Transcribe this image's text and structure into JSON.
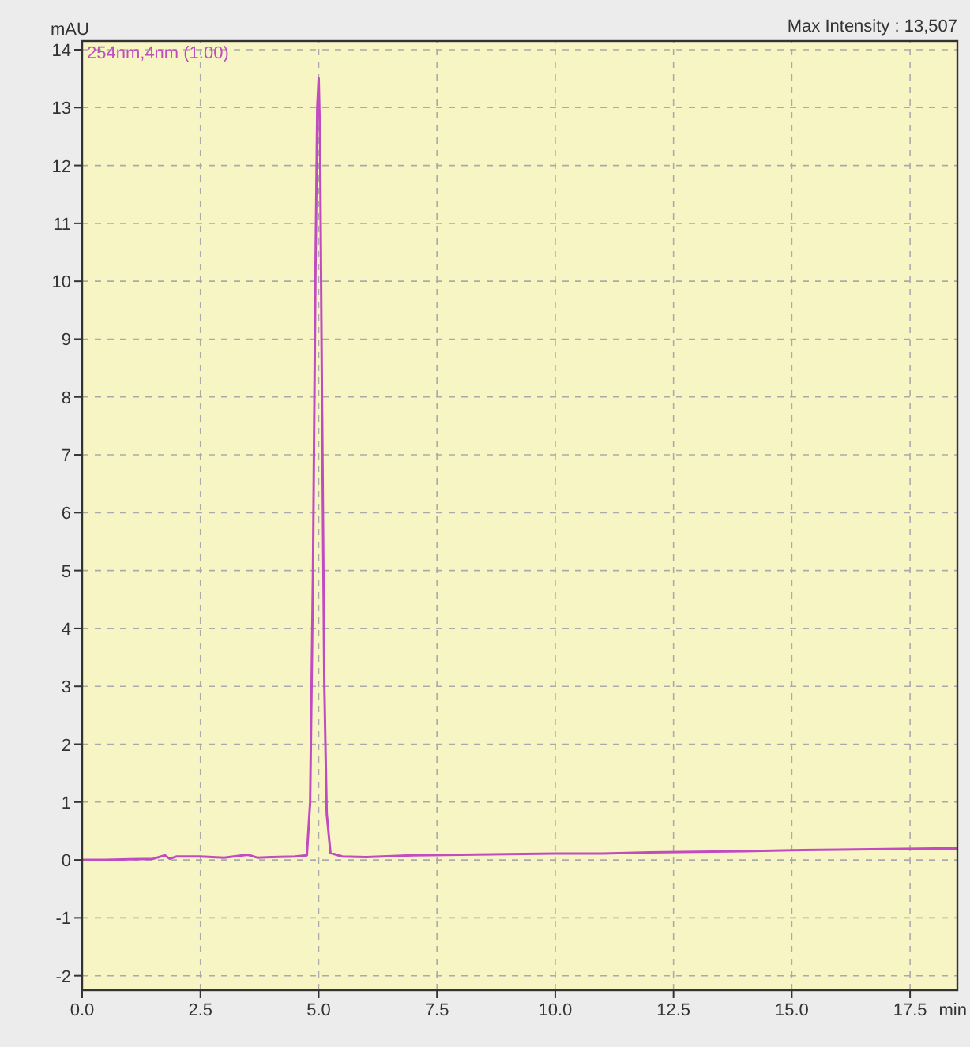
{
  "chart_data": {
    "type": "line",
    "xlabel": "min",
    "ylabel": "mAU",
    "annotations": [
      "Max Intensity : 13,507"
    ],
    "xlim": [
      0,
      18.5
    ],
    "ylim": [
      -2.25,
      14.15
    ],
    "xticks": [
      {
        "value": 0,
        "label": "0.0"
      },
      {
        "value": 2.5,
        "label": "2.5"
      },
      {
        "value": 5,
        "label": "5.0"
      },
      {
        "value": 7.5,
        "label": "7.5"
      },
      {
        "value": 10,
        "label": "10.0"
      },
      {
        "value": 12.5,
        "label": "12.5"
      },
      {
        "value": 15,
        "label": "15.0"
      },
      {
        "value": 17.5,
        "label": "17.5"
      }
    ],
    "yticks": [
      -2,
      -1,
      0,
      1,
      2,
      3,
      4,
      5,
      6,
      7,
      8,
      9,
      10,
      11,
      12,
      13,
      14
    ],
    "grid": true,
    "legend": "top left",
    "line_style": "solid",
    "x": [
      0,
      0.5,
      1,
      1.5,
      1.75,
      1.85,
      2,
      2.5,
      3,
      3.5,
      3.7,
      4,
      4.5,
      4.75,
      4.82,
      4.88,
      4.93,
      4.97,
      5,
      5.03,
      5.07,
      5.12,
      5.17,
      5.25,
      5.5,
      6,
      7,
      8,
      9,
      10,
      11,
      12,
      13,
      14,
      15,
      16,
      17,
      18,
      18.5
    ],
    "series": [
      {
        "name": "254nm,4nm (1.00)",
        "color": "#c04cc0",
        "values": [
          0,
          0,
          0.01,
          0.02,
          0.08,
          0.02,
          0.06,
          0.06,
          0.04,
          0.09,
          0.04,
          0.05,
          0.06,
          0.08,
          1,
          5,
          10,
          13,
          13.507,
          12.4,
          8,
          3,
          0.8,
          0.12,
          0.06,
          0.05,
          0.08,
          0.09,
          0.1,
          0.11,
          0.11,
          0.13,
          0.14,
          0.15,
          0.17,
          0.18,
          0.19,
          0.2,
          0.2
        ]
      }
    ]
  }
}
